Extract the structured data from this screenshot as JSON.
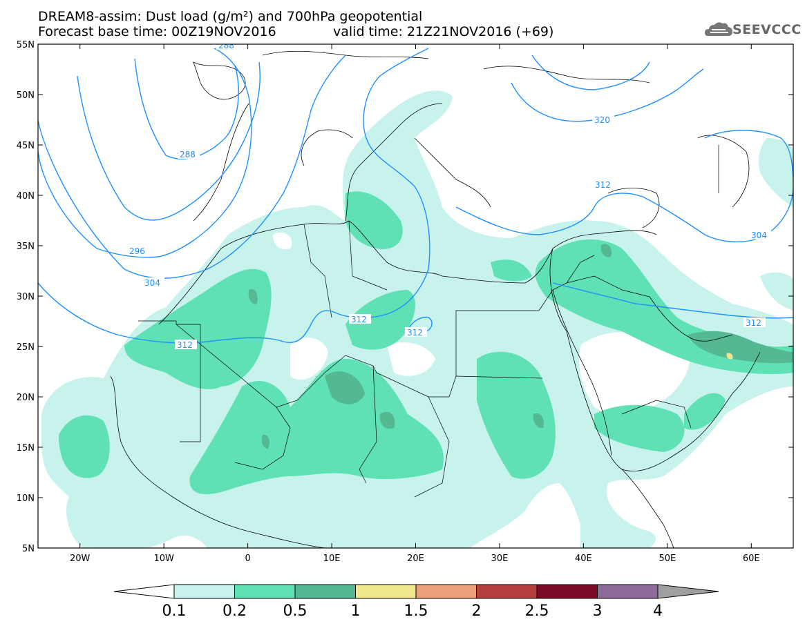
{
  "header": {
    "line1": "DREAM8-assim: Dust load (g/m²) and 700hPa geopotential",
    "line2": "Forecast base time: 00Z19NOV2016",
    "valid": "valid time: 21Z21NOV2016 (+69)",
    "logo_text": "SEEVCCC",
    "logo_icon": "cloud-icon"
  },
  "map": {
    "projection": "lat-lon",
    "lon_range": [
      -25,
      65
    ],
    "lat_range": [
      5,
      55
    ],
    "x_ticks": [
      "20W",
      "10W",
      "0",
      "10E",
      "20E",
      "30E",
      "40E",
      "50E",
      "60E"
    ],
    "y_ticks": [
      "55N",
      "50N",
      "45N",
      "40N",
      "35N",
      "30N",
      "25N",
      "20N",
      "15N",
      "10N",
      "5N"
    ],
    "contour_color": "#1e90ff",
    "contour_labels": [
      "288",
      "296",
      "304",
      "312",
      "312",
      "312",
      "320",
      "312",
      "304",
      "312",
      "288"
    ],
    "dust_colors": {
      "0.1": "#c7f3ec",
      "0.2": "#5fe1b5",
      "0.5": "#54b891",
      "1": "#f0e68c"
    }
  },
  "colorbar": {
    "levels": [
      "0.1",
      "0.2",
      "0.5",
      "1",
      "1.5",
      "2",
      "2.5",
      "3",
      "4"
    ],
    "colors": [
      "#c7f3ec",
      "#5fe1b5",
      "#54b891",
      "#f0e68c",
      "#e9a07b",
      "#b3403f",
      "#7c0a27",
      "#8e6a9b"
    ],
    "low_end": "#ffffff",
    "high_end": "#a0a0a0"
  }
}
